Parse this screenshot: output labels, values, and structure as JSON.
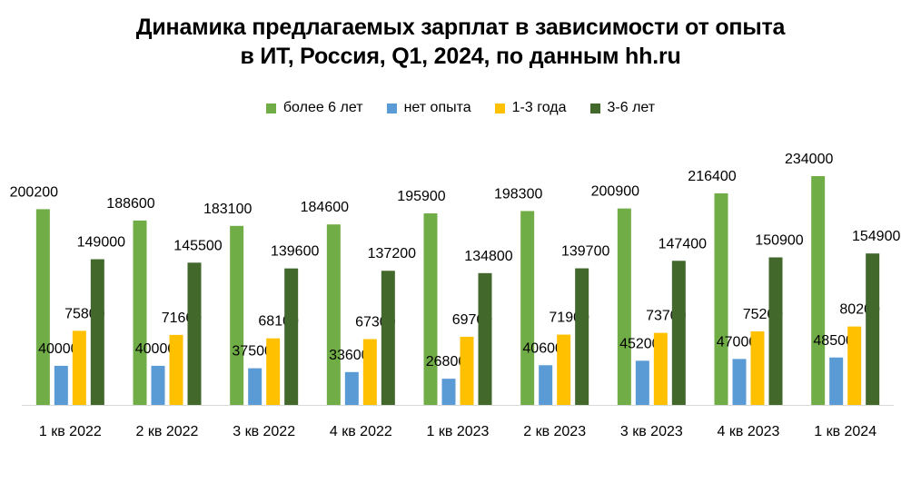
{
  "chart_data": {
    "type": "bar",
    "title_line1": "Динамика предлагаемых зарплат в зависимости от опыта",
    "title_line2": "в ИТ, Россия, Q1, 2024, по данным hh.ru",
    "categories": [
      "1 кв 2022",
      "2 кв 2022",
      "3 кв 2022",
      "4 кв 2022",
      "1 кв 2023",
      "2 кв 2023",
      "3 кв 2023",
      "4 кв 2023",
      "1 кв 2024"
    ],
    "series": [
      {
        "name": "более 6 лет",
        "color": "#70AD47",
        "values": [
          200200,
          188600,
          183100,
          184600,
          195900,
          198300,
          200900,
          216400,
          234000
        ]
      },
      {
        "name": "нет опыта",
        "color": "#5B9BD5",
        "values": [
          40000,
          40000,
          37500,
          33600,
          26800,
          40600,
          45200,
          47000,
          48500
        ]
      },
      {
        "name": "1-3 года",
        "color": "#FFC000",
        "values": [
          75800,
          71600,
          68100,
          67300,
          69700,
          71900,
          73700,
          75200,
          80200
        ]
      },
      {
        "name": "3-6 лет",
        "color": "#43682B",
        "values": [
          149000,
          145500,
          139600,
          137200,
          134800,
          139700,
          147400,
          150900,
          154900
        ]
      }
    ],
    "ylim": [
      0,
      234000
    ],
    "grid": false,
    "legend_position": "top"
  }
}
